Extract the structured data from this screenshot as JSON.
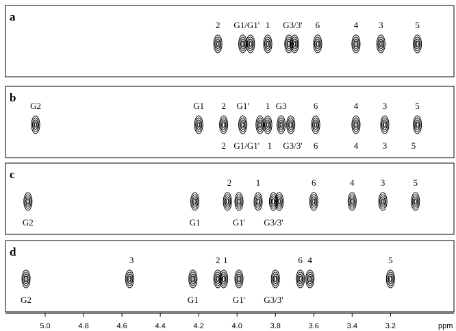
{
  "chart_data": {
    "type": "nmr",
    "xlim": [
      5.2,
      2.88
    ],
    "xticks": [
      {
        "value": 5.0,
        "label": "5.0"
      },
      4.8,
      4.6,
      4.4,
      4.2,
      {
        "value": 4.0,
        "label": "4.0"
      },
      3.8,
      3.6,
      3.4,
      3.2
    ],
    "xlabel": "ppm",
    "panels": [
      {
        "name": "a",
        "peaks": [
          4.1,
          3.97,
          3.93,
          3.84,
          3.73,
          3.7,
          3.58,
          3.38,
          3.25,
          3.06
        ],
        "labels_above": [
          {
            "text": "2",
            "ppm": 4.1
          },
          {
            "text": "G1/G1'",
            "ppm": 3.95
          },
          {
            "text": "1",
            "ppm": 3.84
          },
          {
            "text": "G3/3'",
            "ppm": 3.71
          },
          {
            "text": "6",
            "ppm": 3.58
          },
          {
            "text": "4",
            "ppm": 3.38
          },
          {
            "text": "3",
            "ppm": 3.25
          },
          {
            "text": "5",
            "ppm": 3.06
          }
        ],
        "labels_below": []
      },
      {
        "name": "b",
        "peaks": [
          5.05,
          4.2,
          4.07,
          3.97,
          3.88,
          3.84,
          3.77,
          3.72,
          3.59,
          3.38,
          3.23,
          3.06
        ],
        "labels_above": [
          {
            "text": "G2",
            "ppm": 5.05
          },
          {
            "text": "G1",
            "ppm": 4.2
          },
          {
            "text": "2",
            "ppm": 4.07
          },
          {
            "text": "G1'",
            "ppm": 3.97
          },
          {
            "text": "1",
            "ppm": 3.84
          },
          {
            "text": "G3",
            "ppm": 3.77
          },
          {
            "text": "6",
            "ppm": 3.59
          },
          {
            "text": "4",
            "ppm": 3.38
          },
          {
            "text": "3",
            "ppm": 3.23
          },
          {
            "text": "5",
            "ppm": 3.06
          }
        ],
        "labels_below": [
          {
            "text": "2",
            "ppm": 4.07
          },
          {
            "text": "G1/G1'",
            "ppm": 3.95
          },
          {
            "text": "1",
            "ppm": 3.83
          },
          {
            "text": "G3/3'",
            "ppm": 3.71
          },
          {
            "text": "6",
            "ppm": 3.59
          },
          {
            "text": "4",
            "ppm": 3.38
          },
          {
            "text": "3",
            "ppm": 3.23
          },
          {
            "text": "5",
            "ppm": 3.08
          }
        ]
      },
      {
        "name": "c",
        "peaks": [
          5.09,
          4.22,
          4.05,
          3.99,
          3.89,
          3.81,
          3.78,
          3.6,
          3.4,
          3.24,
          3.07
        ],
        "labels_above": [
          {
            "text": "2",
            "ppm": 4.04
          },
          {
            "text": "1",
            "ppm": 3.89
          },
          {
            "text": "6",
            "ppm": 3.6
          },
          {
            "text": "4",
            "ppm": 3.4
          },
          {
            "text": "3",
            "ppm": 3.24
          },
          {
            "text": "5",
            "ppm": 3.07
          }
        ],
        "labels_below": [
          {
            "text": "G2",
            "ppm": 5.09
          },
          {
            "text": "G1",
            "ppm": 4.22
          },
          {
            "text": "G1'",
            "ppm": 3.99
          },
          {
            "text": "G3/3'",
            "ppm": 3.81
          }
        ]
      },
      {
        "name": "d",
        "peaks": [
          5.1,
          4.56,
          4.23,
          4.1,
          4.07,
          3.99,
          3.8,
          3.67,
          3.62,
          3.2
        ],
        "labels_above": [
          {
            "text": "3",
            "ppm": 4.55
          },
          {
            "text": "2",
            "ppm": 4.1
          },
          {
            "text": "1",
            "ppm": 4.06
          },
          {
            "text": "6",
            "ppm": 3.67
          },
          {
            "text": "4",
            "ppm": 3.62
          },
          {
            "text": "5",
            "ppm": 3.2
          }
        ],
        "labels_below": [
          {
            "text": "G2",
            "ppm": 5.1
          },
          {
            "text": "G1",
            "ppm": 4.23
          },
          {
            "text": "G1'",
            "ppm": 3.99
          },
          {
            "text": "G3/3'",
            "ppm": 3.81
          }
        ]
      }
    ]
  }
}
